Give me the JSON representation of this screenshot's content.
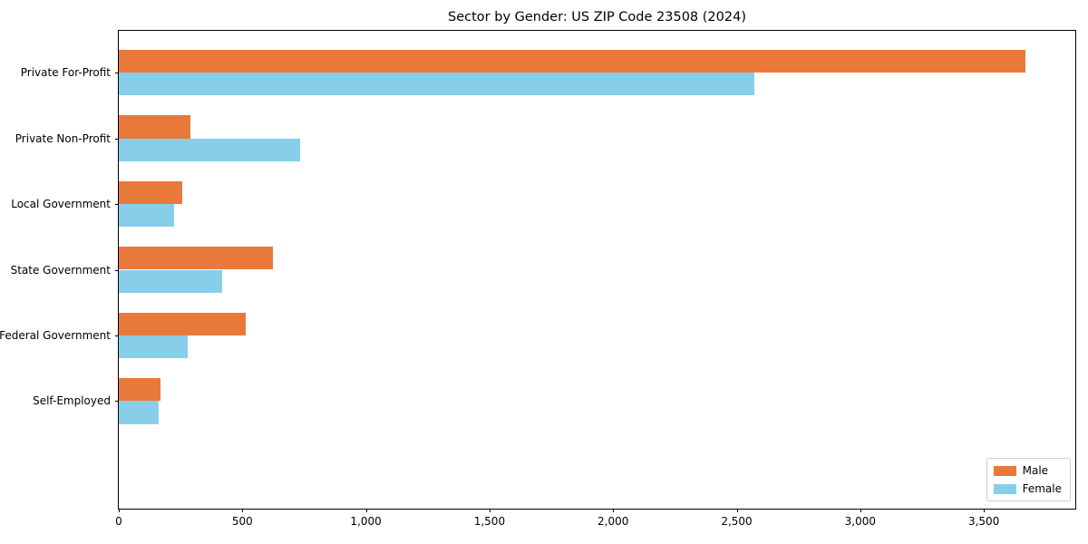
{
  "title": "Sector by Gender: US ZIP Code 23508 (2024)",
  "chart_data": {
    "type": "bar",
    "orientation": "horizontal",
    "title": "Sector by Gender: US ZIP Code 23508 (2024)",
    "categories": [
      "Private For-Profit",
      "Private Non-Profit",
      "Local Government",
      "State Government",
      "Federal Government",
      "Self-Employed"
    ],
    "series": [
      {
        "name": "Male",
        "color": "#e8793b",
        "values": [
          3670,
          290,
          255,
          625,
          515,
          170
        ]
      },
      {
        "name": "Female",
        "color": "#87ceeb",
        "values": [
          2570,
          735,
          225,
          420,
          280,
          160
        ]
      }
    ],
    "xlabel": "",
    "ylabel": "",
    "xlim": [
      0,
      3870
    ],
    "x_ticks": [
      0,
      500,
      1000,
      1500,
      2000,
      2500,
      3000,
      3500
    ],
    "x_tick_labels": [
      "0",
      "500",
      "1,000",
      "1,500",
      "2,000",
      "2,500",
      "3,000",
      "3,500"
    ],
    "grid": false,
    "legend_position": "lower right"
  },
  "legend": {
    "items": [
      {
        "label": "Male",
        "color": "#e8793b"
      },
      {
        "label": "Female",
        "color": "#87ceeb"
      }
    ]
  }
}
